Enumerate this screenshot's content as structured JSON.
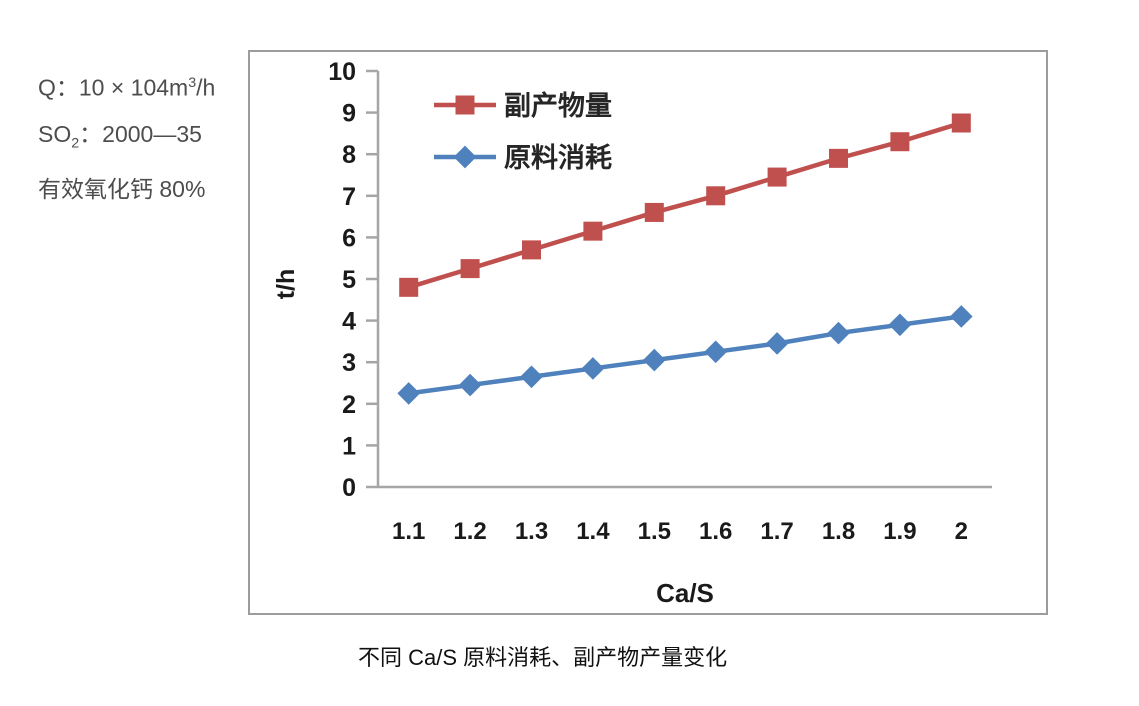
{
  "info_panel": {
    "line1": {
      "prefix": "Q：10 × 104m",
      "sup": "3",
      "suffix": "/h"
    },
    "line2": {
      "prefix": "SO",
      "sub": "2",
      "suffix": "：2000—35"
    },
    "line3": "有效氧化钙 80%"
  },
  "caption": "不同 Ca/S 原料消耗、副产物产量变化",
  "chart_data": {
    "type": "line",
    "categories": [
      "1.1",
      "1.2",
      "1.3",
      "1.4",
      "1.5",
      "1.6",
      "1.7",
      "1.8",
      "1.9",
      "2"
    ],
    "series": [
      {
        "name": "原料消耗",
        "marker": "diamond",
        "color": "#4F81BD",
        "values": [
          2.25,
          2.45,
          2.65,
          2.85,
          3.05,
          3.25,
          3.45,
          3.7,
          3.9,
          4.1
        ]
      },
      {
        "name": "副产物量",
        "marker": "square",
        "color": "#C0504D",
        "values": [
          4.8,
          5.25,
          5.7,
          6.15,
          6.6,
          7.0,
          7.45,
          7.9,
          8.3,
          8.75
        ]
      }
    ],
    "xlabel": "Ca/S",
    "ylabel": "t/h",
    "ylim": [
      0,
      10
    ],
    "ytick_step": 1,
    "grid": false,
    "legend_position": "top-left-inside",
    "axis_color": "#a6a6a6",
    "tick_label_color": "#1a1a1a",
    "legend_text_color": "#262626"
  }
}
